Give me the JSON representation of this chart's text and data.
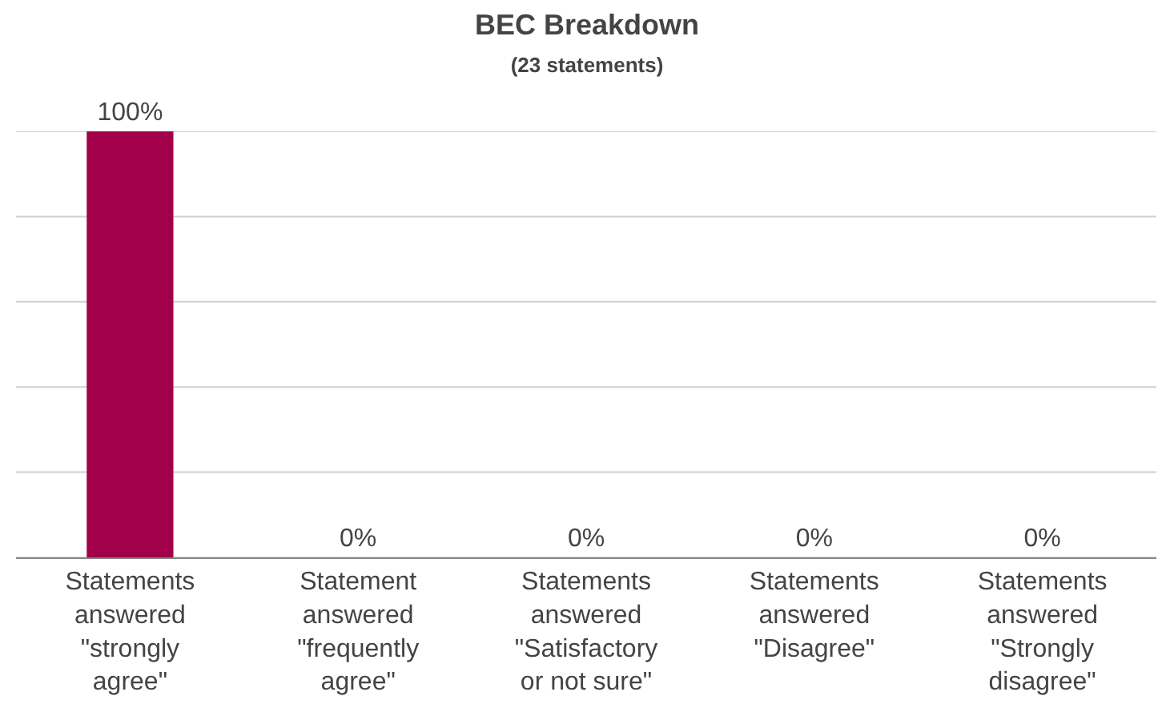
{
  "chart_data": {
    "type": "bar",
    "title": "BEC Breakdown",
    "subtitle": "(23 statements)",
    "categories": [
      "Statements answered \"strongly agree\"",
      "Statement answered \"frequently agree\"",
      "Statements answered \"Satisfactory or not sure\"",
      "Statements answered \"Disagree\"",
      "Statements answered \"Strongly disagree\""
    ],
    "values": [
      100,
      0,
      0,
      0,
      0
    ],
    "value_labels": [
      "100%",
      "0%",
      "0%",
      "0%",
      "0%"
    ],
    "color": "#a3004a",
    "ylim": [
      0,
      100
    ],
    "yticks": [
      {
        "value": 0,
        "label": null
      },
      {
        "value": 20,
        "label": null
      },
      {
        "value": 40,
        "label": null
      },
      {
        "value": 60,
        "label": null
      },
      {
        "value": 80,
        "label": null
      },
      {
        "value": 100,
        "label": null
      }
    ],
    "tick_labels": "x",
    "grid": "y"
  }
}
